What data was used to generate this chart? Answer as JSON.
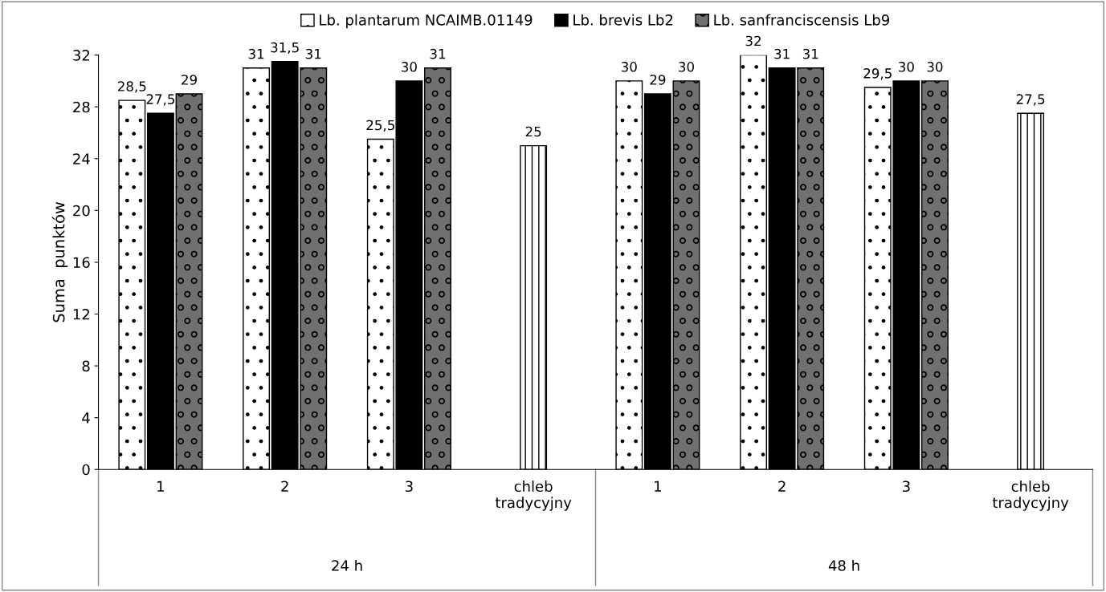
{
  "chart_data": {
    "type": "bar",
    "ylabel": "Suma  punktów",
    "categories": [
      "1",
      "2",
      "3",
      "chleb tradycyjny",
      "1",
      "2",
      "3",
      "chleb tradycyjny"
    ],
    "annotations": [
      "24 h",
      "48 h"
    ],
    "series": [
      {
        "name": "Lb. plantarum NCAIMB.01149",
        "color": "#ffffff",
        "values": [
          28.5,
          31,
          25.5,
          null,
          30,
          32,
          29.5,
          null
        ],
        "value_labels": [
          "28,5",
          "31",
          "25,5",
          null,
          "30",
          "32",
          "29,5",
          null
        ]
      },
      {
        "name": "Lb. brevis Lb2",
        "color": "#000000",
        "values": [
          27.5,
          31.5,
          30,
          null,
          29,
          31,
          30,
          null
        ],
        "value_labels": [
          "27,5",
          "31,5",
          "30",
          null,
          "29",
          "31",
          "30",
          null
        ]
      },
      {
        "name": "Lb. sanfranciscensis Lb9",
        "color": "#707070",
        "values": [
          29,
          31,
          31,
          null,
          30,
          31,
          30,
          null
        ],
        "value_labels": [
          "29",
          "31",
          "31",
          null,
          "30",
          "31",
          "30",
          null
        ]
      },
      {
        "color": "#ffffff",
        "values": [
          null,
          null,
          null,
          25,
          null,
          null,
          null,
          27.5
        ],
        "value_labels": [
          null,
          null,
          null,
          "25",
          null,
          null,
          null,
          "27,5"
        ]
      }
    ],
    "ylim": [
      0,
      32
    ],
    "yticks": [
      0,
      4,
      8,
      12,
      16,
      20,
      24,
      28,
      32
    ],
    "grid": false,
    "legend": "top"
  }
}
